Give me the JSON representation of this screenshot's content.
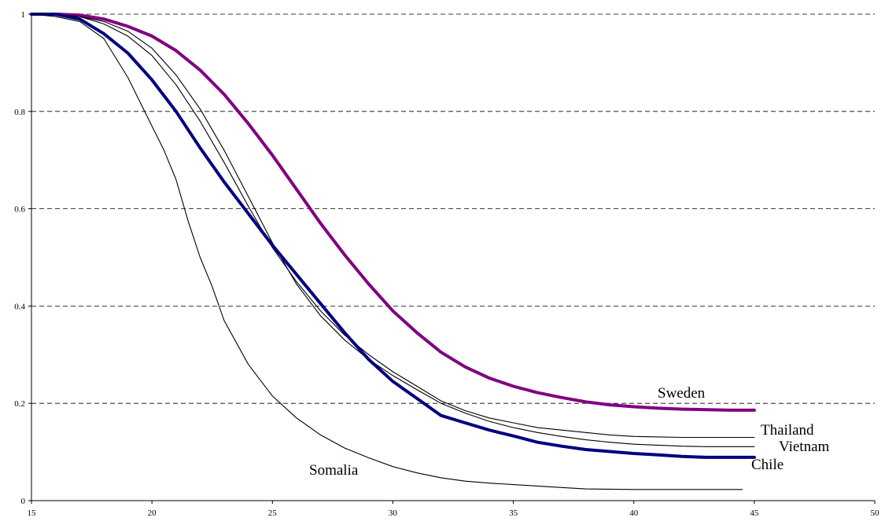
{
  "chart_data": {
    "type": "line",
    "title": "",
    "xlabel": "",
    "ylabel": "",
    "xlim": [
      15,
      50
    ],
    "ylim": [
      0,
      1
    ],
    "x_ticks": [
      15,
      20,
      25,
      30,
      35,
      40,
      45,
      50
    ],
    "x_tick_labels": [
      "15",
      "20",
      "25",
      "30",
      "35",
      "40",
      "45",
      "50"
    ],
    "y_ticks": [
      0,
      0.2,
      0.4,
      0.6,
      0.8,
      1
    ],
    "y_tick_labels": [
      "0",
      "0.2",
      "0.4",
      "0.6",
      "0.8",
      "1"
    ],
    "grid": "horizontal dashed",
    "legend": "none (series labelled at line ends)",
    "series": [
      {
        "name": "Sweden",
        "color": "#800080",
        "line_width": "thick",
        "x": [
          15,
          16,
          17,
          18,
          19,
          20,
          21,
          22,
          23,
          24,
          25,
          26,
          27,
          28,
          29,
          30,
          31,
          32,
          33,
          34,
          35,
          36,
          37,
          38,
          39,
          40,
          41,
          42,
          43,
          44,
          45
        ],
        "y": [
          1.0,
          1.0,
          0.998,
          0.99,
          0.975,
          0.955,
          0.925,
          0.885,
          0.835,
          0.775,
          0.71,
          0.64,
          0.57,
          0.505,
          0.445,
          0.39,
          0.345,
          0.305,
          0.275,
          0.252,
          0.235,
          0.222,
          0.212,
          0.203,
          0.197,
          0.193,
          0.19,
          0.188,
          0.187,
          0.186,
          0.186
        ]
      },
      {
        "name": "Thailand",
        "color": "#000000",
        "line_width": "thin",
        "x": [
          15,
          16,
          17,
          18,
          19,
          20,
          21,
          22,
          23,
          24,
          25,
          26,
          27,
          28,
          29,
          30,
          31,
          32,
          33,
          34,
          35,
          36,
          37,
          38,
          39,
          40,
          41,
          42,
          43,
          44,
          45
        ],
        "y": [
          1.0,
          1.0,
          0.995,
          0.98,
          0.955,
          0.915,
          0.855,
          0.78,
          0.695,
          0.605,
          0.52,
          0.45,
          0.39,
          0.34,
          0.3,
          0.265,
          0.235,
          0.205,
          0.185,
          0.17,
          0.16,
          0.15,
          0.145,
          0.14,
          0.135,
          0.132,
          0.131,
          0.13,
          0.13,
          0.13,
          0.13
        ]
      },
      {
        "name": "Vietnam",
        "color": "#000000",
        "line_width": "thin",
        "x": [
          15,
          16,
          17,
          18,
          19,
          20,
          21,
          22,
          23,
          24,
          25,
          26,
          27,
          28,
          29,
          30,
          31,
          32,
          33,
          34,
          35,
          36,
          37,
          38,
          39,
          40,
          41,
          42,
          43,
          44,
          45
        ],
        "y": [
          1.0,
          1.0,
          0.995,
          0.985,
          0.965,
          0.93,
          0.875,
          0.805,
          0.72,
          0.625,
          0.53,
          0.445,
          0.38,
          0.33,
          0.29,
          0.257,
          0.228,
          0.2,
          0.18,
          0.163,
          0.15,
          0.14,
          0.132,
          0.125,
          0.12,
          0.116,
          0.114,
          0.112,
          0.111,
          0.111,
          0.111
        ]
      },
      {
        "name": "Chile",
        "color": "#000080",
        "line_width": "thick",
        "x": [
          15,
          16,
          17,
          18,
          19,
          20,
          21,
          22,
          23,
          24,
          25,
          26,
          27,
          28,
          29,
          30,
          31,
          32,
          33,
          34,
          35,
          36,
          37,
          38,
          39,
          40,
          41,
          42,
          43,
          44,
          45
        ],
        "y": [
          1.0,
          1.0,
          0.99,
          0.96,
          0.92,
          0.865,
          0.8,
          0.725,
          0.655,
          0.59,
          0.525,
          0.465,
          0.405,
          0.345,
          0.29,
          0.245,
          0.21,
          0.175,
          0.16,
          0.145,
          0.133,
          0.12,
          0.112,
          0.105,
          0.101,
          0.097,
          0.094,
          0.091,
          0.089,
          0.089,
          0.089
        ]
      },
      {
        "name": "Somalia",
        "color": "#000000",
        "line_width": "thin",
        "x": [
          15,
          16,
          17,
          18,
          19,
          20,
          20.5,
          21,
          21.5,
          22,
          22.5,
          23,
          24,
          25,
          26,
          27,
          28,
          29,
          30,
          31,
          32,
          33,
          34,
          35,
          36,
          37,
          38,
          40,
          42,
          44.5
        ],
        "y": [
          1.0,
          0.995,
          0.985,
          0.95,
          0.87,
          0.77,
          0.72,
          0.66,
          0.575,
          0.5,
          0.44,
          0.37,
          0.28,
          0.215,
          0.17,
          0.135,
          0.108,
          0.088,
          0.07,
          0.057,
          0.047,
          0.04,
          0.036,
          0.033,
          0.03,
          0.027,
          0.024,
          0.023,
          0.023,
          0.023
        ]
      }
    ]
  }
}
